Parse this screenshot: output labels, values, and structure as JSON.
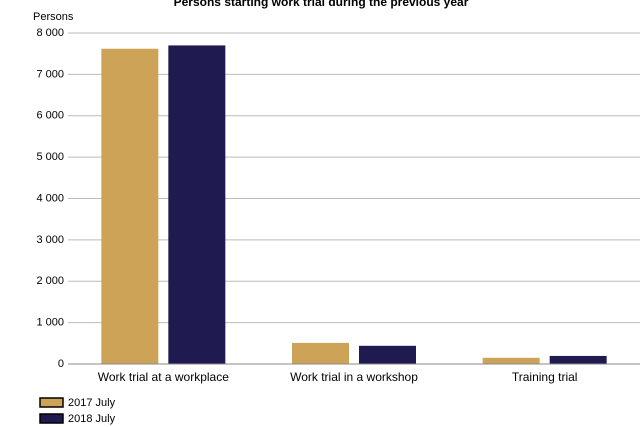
{
  "chart_data": {
    "type": "bar",
    "title": "Persons starting work trial during the previous year",
    "ylabel": "Persons",
    "categories": [
      "Work trial at a workplace",
      "Work trial in a workshop",
      "Training trial"
    ],
    "series": [
      {
        "name": "2017 July",
        "values": [
          7620,
          510,
          150
        ],
        "color": "#cda357"
      },
      {
        "name": "2018 July",
        "values": [
          7700,
          440,
          195
        ],
        "color": "#1f1a4f"
      }
    ],
    "ylim": [
      0,
      8000
    ],
    "yticks": [
      0,
      1000,
      2000,
      3000,
      4000,
      5000,
      6000,
      7000,
      8000
    ],
    "ytick_labels": [
      "0",
      "1 000",
      "2 000",
      "3 000",
      "4 000",
      "5 000",
      "6 000",
      "7 000",
      "8 000"
    ],
    "grid": true,
    "legend_position": "bottom-left"
  }
}
